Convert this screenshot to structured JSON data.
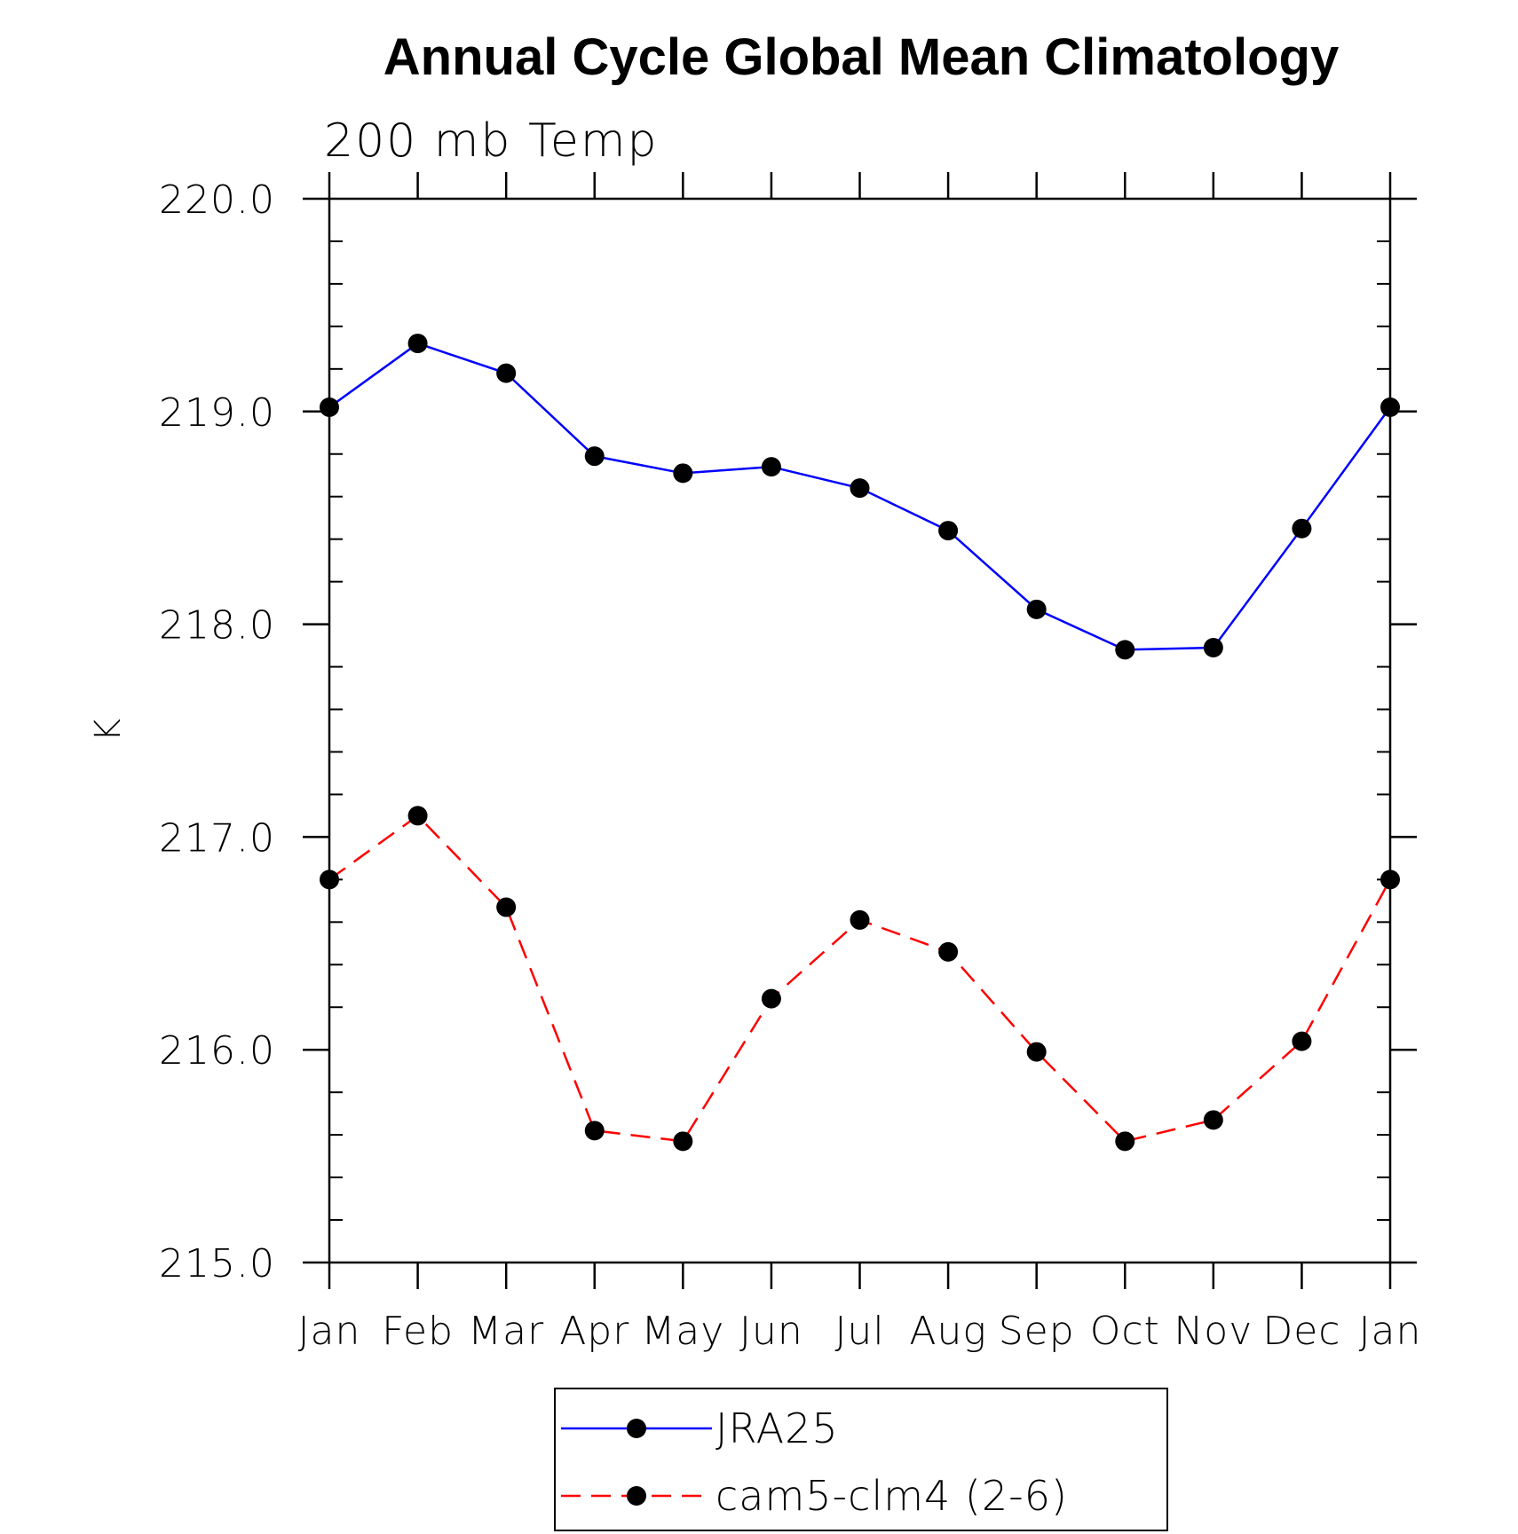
{
  "chart_data": {
    "type": "line",
    "title": "Annual Cycle Global Mean Climatology",
    "subtitle": "200 mb Temp",
    "ylabel": "K",
    "xlabel": "",
    "categories": [
      "Jan",
      "Feb",
      "Mar",
      "Apr",
      "May",
      "Jun",
      "Jul",
      "Aug",
      "Sep",
      "Oct",
      "Nov",
      "Dec",
      "Jan"
    ],
    "ylim": [
      215.0,
      220.0
    ],
    "yticks": [
      "215.0",
      "216.0",
      "217.0",
      "218.0",
      "219.0",
      "220.0"
    ],
    "yminor_step": 0.2,
    "legend_position": "bottom-center",
    "series": [
      {
        "name": "JRA25",
        "color": "#0000ff",
        "dash": "solid",
        "marker": "filled-circle",
        "values": [
          219.02,
          219.32,
          219.18,
          218.79,
          218.71,
          218.74,
          218.64,
          218.44,
          218.07,
          217.88,
          217.89,
          218.45,
          219.02
        ]
      },
      {
        "name": "cam5-clm4 (2-6)",
        "color": "#ff0000",
        "dash": "dashed",
        "marker": "filled-circle",
        "values": [
          216.8,
          217.1,
          216.67,
          215.62,
          215.57,
          216.24,
          216.61,
          216.46,
          215.99,
          215.57,
          215.67,
          216.04,
          216.8
        ]
      }
    ]
  }
}
